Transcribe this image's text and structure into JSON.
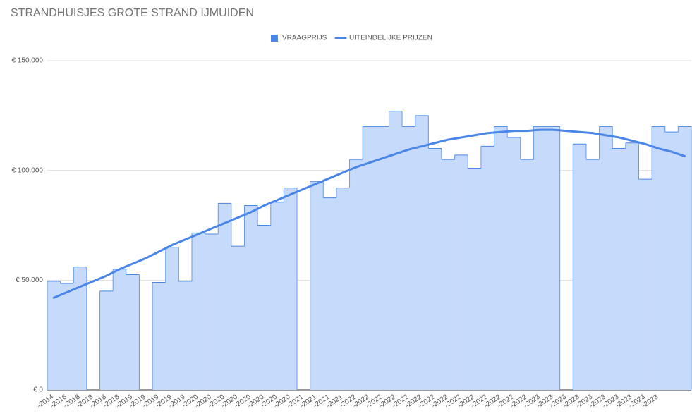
{
  "chart_data": {
    "type": "stepped-area",
    "title": "STRANDHUISJES GROTE STRAND IJMUIDEN",
    "categories": [
      "-2014",
      "-2016",
      "-2018",
      "-2018",
      "-2018",
      "-2018",
      "-2019",
      "-2019",
      "-2019",
      "-2019",
      "-2019",
      "-2020",
      "-2020",
      "-2020",
      "-2020",
      "-2020",
      "-2020",
      "-2020",
      "-2020",
      "-2021",
      "-2021",
      "-2021",
      "-2021",
      "-2022",
      "-2022",
      "-2022",
      "-2022",
      "-2022",
      "-2022",
      "-2022",
      "-2022",
      "-2022",
      "-2022",
      "-2022",
      "-2022",
      "-2022",
      "-2022",
      "-2023",
      "-2023",
      "-2023",
      "-2023",
      "-2023",
      "-2023",
      "-2023",
      "-2023",
      "-2023",
      "-2023",
      null,
      null
    ],
    "series": [
      {
        "name": "VRAAGPRIJS",
        "color": "#4a86e8",
        "fill": "#c6dafc",
        "values": [
          49500,
          48500,
          56000,
          null,
          45000,
          55000,
          52500,
          null,
          49000,
          65000,
          49500,
          71500,
          71000,
          85000,
          65500,
          84000,
          75000,
          85500,
          92000,
          null,
          95000,
          87500,
          92000,
          105000,
          120000,
          120000,
          127000,
          120000,
          125000,
          110000,
          105000,
          107000,
          101000,
          111000,
          120000,
          115000,
          105000,
          120000,
          120000,
          null,
          112000,
          105000,
          120000,
          110000,
          112500,
          96000,
          120000,
          117500,
          120000
        ]
      },
      {
        "name": "UITEINDELIJKE PRIJZEN",
        "color": "#4a86e8",
        "values": [
          42000,
          44500,
          47000,
          49500,
          52000,
          55000,
          57500,
          60000,
          63000,
          66000,
          68500,
          71000,
          73500,
          76000,
          78500,
          81000,
          84000,
          86500,
          89000,
          91500,
          94000,
          96500,
          99000,
          101500,
          103500,
          105500,
          107500,
          109500,
          111000,
          112500,
          114000,
          115000,
          116000,
          117000,
          117500,
          118000,
          118000,
          118500,
          118500,
          118000,
          117500,
          117000,
          116000,
          115000,
          113500,
          112000,
          110000,
          108500,
          106500
        ]
      }
    ],
    "ylim": [
      0,
      150000
    ],
    "yticks": [
      {
        "value": 0,
        "label": "€ 0"
      },
      {
        "value": 50000,
        "label": "€ 50.000"
      },
      {
        "value": 100000,
        "label": "€ 100.000"
      },
      {
        "value": 150000,
        "label": "€ 150.000"
      }
    ],
    "grid": true,
    "legend": "top"
  }
}
